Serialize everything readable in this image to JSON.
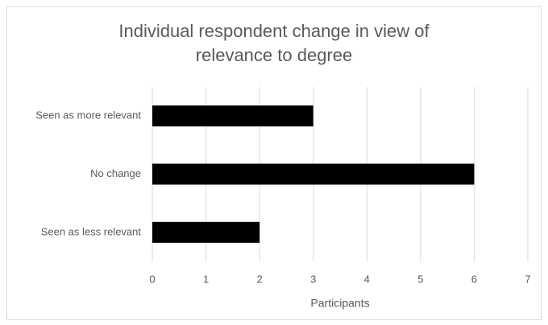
{
  "chart_data": {
    "type": "bar",
    "orientation": "horizontal",
    "title": "Individual respondent change in view of relevance to degree",
    "categories": [
      "Seen as more relevant",
      "No change",
      "Seen as less relevant"
    ],
    "values": [
      3,
      6,
      2
    ],
    "color": "#000000",
    "xlabel": "Participants",
    "xlim": [
      0,
      7
    ],
    "xticks": [
      0,
      1,
      2,
      3,
      4,
      5,
      6,
      7
    ],
    "grid": true
  }
}
